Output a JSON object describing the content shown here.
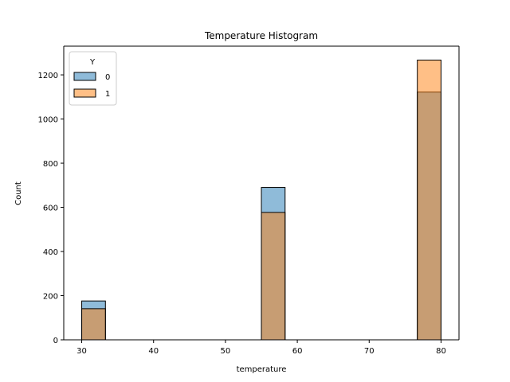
{
  "chart_data": {
    "type": "bar",
    "title": "Temperature Histogram",
    "xlabel": "temperature",
    "ylabel": "Count",
    "xlim": [
      27.5,
      82.5
    ],
    "ylim": [
      0,
      1330
    ],
    "xticks": [
      30,
      40,
      50,
      60,
      70,
      80
    ],
    "yticks": [
      0,
      200,
      400,
      600,
      800,
      1000,
      1200
    ],
    "bins": [
      [
        30,
        33.3
      ],
      [
        55,
        58.3
      ],
      [
        76.7,
        80
      ]
    ],
    "legend": {
      "title": "Y",
      "placement": "top-left"
    },
    "series": [
      {
        "name": "0",
        "color": "#1f77b4",
        "values": [
          176,
          690,
          1122
        ]
      },
      {
        "name": "1",
        "color": "#ff7f0e",
        "values": [
          141,
          577,
          1267
        ]
      }
    ],
    "grid": false
  }
}
